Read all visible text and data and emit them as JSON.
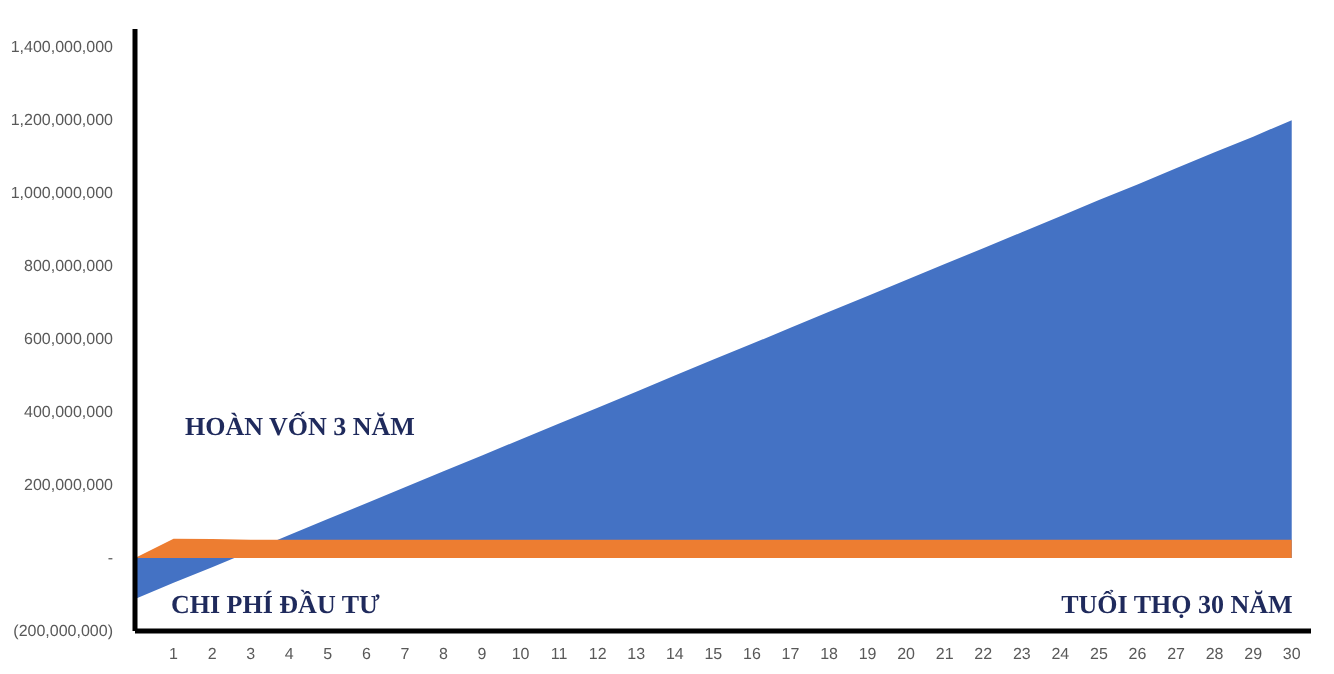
{
  "chart_data": {
    "type": "area",
    "x": [
      0,
      1,
      2,
      3,
      4,
      5,
      6,
      7,
      8,
      9,
      10,
      11,
      12,
      13,
      14,
      15,
      16,
      17,
      18,
      19,
      20,
      21,
      22,
      23,
      24,
      25,
      26,
      27,
      28,
      29,
      30
    ],
    "series": [
      {
        "color": "#4472c4",
        "values": [
          -112000000,
          -68000000,
          -25000000,
          null,
          63000000,
          107000000,
          150000000,
          194000000,
          238000000,
          281000000,
          325000000,
          369000000,
          412000000,
          456000000,
          500000000,
          544000000,
          587000000,
          631000000,
          675000000,
          718000000,
          762000000,
          806000000,
          849000000,
          893000000,
          937000000,
          981000000,
          1024000000,
          1068000000,
          1112000000,
          1155000000,
          1200000000
        ]
      },
      {
        "color": "#ed7d31",
        "values": [
          0,
          53000000,
          52000000,
          50000000,
          50000000,
          50000000,
          50000000,
          50000000,
          50000000,
          50000000,
          50000000,
          50000000,
          50000000,
          50000000,
          50000000,
          50000000,
          50000000,
          50000000,
          50000000,
          50000000,
          50000000,
          50000000,
          50000000,
          50000000,
          50000000,
          50000000,
          50000000,
          50000000,
          50000000,
          50000000,
          50000000
        ]
      }
    ],
    "xlim": [
      0,
      30.5
    ],
    "xticks": [
      1,
      2,
      3,
      4,
      5,
      6,
      7,
      8,
      9,
      10,
      11,
      12,
      13,
      14,
      15,
      16,
      17,
      18,
      19,
      20,
      21,
      22,
      23,
      24,
      25,
      26,
      27,
      28,
      29,
      30
    ],
    "ylim": [
      -200000000,
      1450000000
    ],
    "yticks": [
      {
        "value": -200000000,
        "label": "(200,000,000)"
      },
      {
        "value": 0,
        "label": "-"
      },
      {
        "value": 200000000,
        "label": "200,000,000"
      },
      {
        "value": 400000000,
        "label": "400,000,000"
      },
      {
        "value": 600000000,
        "label": "600,000,000"
      },
      {
        "value": 800000000,
        "label": "800,000,000"
      },
      {
        "value": 1000000000,
        "label": "1,000,000,000"
      },
      {
        "value": 1200000000,
        "label": "1,200,000,000"
      },
      {
        "value": 1400000000,
        "label": "1,400,000,000"
      }
    ],
    "grid": false,
    "annotations": [
      "HOÀN VỐN 3 NĂM",
      "CHI PHÍ ĐẦU TƯ",
      "TUỔI THỌ 30 NĂM"
    ]
  }
}
